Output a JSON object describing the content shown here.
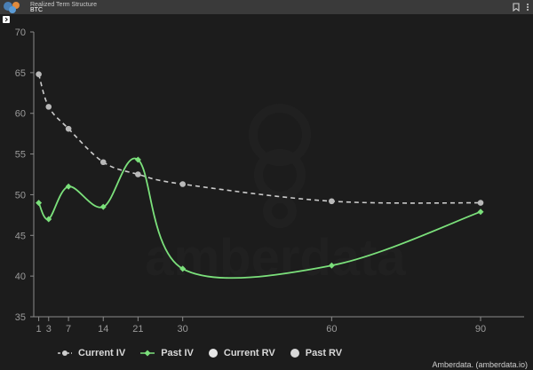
{
  "window": {
    "title": "Realized Term Structure",
    "subtitle": "BTC"
  },
  "icons": {
    "logo": "amberdata-logo-icon",
    "bookmark": "bookmark-icon",
    "more": "more-icon",
    "expand": "chevron-right-icon"
  },
  "watermark": "amberdata",
  "legend_items": [
    "Current IV",
    "Past IV",
    "Current RV",
    "Past RV"
  ],
  "credit": "Amberdata. (amberdata.io)",
  "colors": {
    "background": "#1c1c1c",
    "current_iv": "#cccccc",
    "past_iv": "#7be07b",
    "current_rv": "#e6e6e6",
    "past_rv": "#d9d9d9"
  },
  "chart_data": {
    "type": "line",
    "title": "",
    "xlabel": "",
    "ylabel": "",
    "ylim": [
      35,
      70
    ],
    "x_ticks": [
      1,
      3,
      7,
      14,
      21,
      30,
      60,
      90
    ],
    "y_ticks": [
      35,
      40,
      45,
      50,
      55,
      60,
      65,
      70
    ],
    "grid": false,
    "legend_position": "bottom",
    "series": [
      {
        "name": "Current IV",
        "style": "dashed",
        "marker": "circle",
        "x": [
          1,
          3,
          7,
          14,
          21,
          30,
          60,
          90
        ],
        "y": [
          64.8,
          60.8,
          58.1,
          54.0,
          52.5,
          51.3,
          49.2,
          49.0
        ]
      },
      {
        "name": "Past IV",
        "style": "solid",
        "marker": "diamond",
        "x": [
          1,
          3,
          7,
          14,
          21,
          30,
          60,
          90
        ],
        "y": [
          49.0,
          47.0,
          51.0,
          48.5,
          54.3,
          40.9,
          41.3,
          47.9
        ]
      },
      {
        "name": "Current RV",
        "x": [],
        "y": []
      },
      {
        "name": "Past RV",
        "x": [],
        "y": []
      }
    ]
  }
}
